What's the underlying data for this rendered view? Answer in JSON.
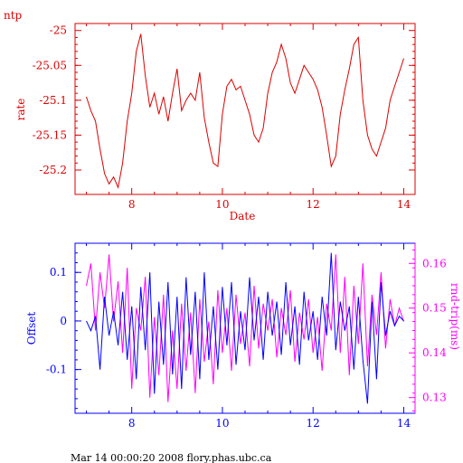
{
  "header": {
    "label": "ntp"
  },
  "footer": {
    "text": "Mar 14 00:00:20 2008 flory.phas.ubc.ca"
  },
  "colors": {
    "top": "#dd0000",
    "offset": "#0000ff",
    "rtt": "#ff00ff",
    "black": "#000000"
  },
  "chart_data": [
    {
      "type": "line",
      "title": "",
      "xlabel": "Date",
      "ylabel": "rate",
      "xlim": [
        6.75,
        14.25
      ],
      "ylim": [
        -25.235,
        -24.99
      ],
      "xticks": [
        8,
        10,
        12,
        14
      ],
      "xtick_labels": [
        "8",
        "10",
        "12",
        "14"
      ],
      "yticks": [
        -25.0,
        -25.05,
        -25.1,
        -25.15,
        -25.2
      ],
      "ytick_labels": [
        "-25",
        "-25.05",
        "-25.1",
        "-25.15",
        "-25.2"
      ],
      "grid": false,
      "series": [
        {
          "x": [
            7.0,
            7.1,
            7.2,
            7.3,
            7.4,
            7.5,
            7.6,
            7.7,
            7.8,
            7.9,
            8.0,
            8.1,
            8.2,
            8.3,
            8.4,
            8.5,
            8.6,
            8.7,
            8.8,
            8.9,
            9.0,
            9.1,
            9.2,
            9.3,
            9.4,
            9.5,
            9.6,
            9.7,
            9.8,
            9.9,
            10.0,
            10.1,
            10.2,
            10.3,
            10.4,
            10.5,
            10.6,
            10.7,
            10.8,
            10.9,
            11.0,
            11.1,
            11.2,
            11.3,
            11.4,
            11.5,
            11.6,
            11.7,
            11.8,
            11.9,
            12.0,
            12.1,
            12.2,
            12.3,
            12.4,
            12.5,
            12.6,
            12.7,
            12.8,
            12.9,
            13.0,
            13.1,
            13.2,
            13.3,
            13.4,
            13.5,
            13.6,
            13.7,
            13.8,
            13.9,
            14.0
          ],
          "values": [
            -25.095,
            -25.115,
            -25.13,
            -25.17,
            -25.205,
            -25.22,
            -25.21,
            -25.225,
            -25.19,
            -25.13,
            -25.09,
            -25.03,
            -25.005,
            -25.065,
            -25.11,
            -25.09,
            -25.12,
            -25.095,
            -25.13,
            -25.09,
            -25.055,
            -25.115,
            -25.1,
            -25.09,
            -25.1,
            -25.06,
            -25.125,
            -25.16,
            -25.19,
            -25.195,
            -25.12,
            -25.08,
            -25.07,
            -25.085,
            -25.08,
            -25.1,
            -25.12,
            -25.15,
            -25.16,
            -25.14,
            -25.09,
            -25.06,
            -25.045,
            -25.02,
            -25.04,
            -25.075,
            -25.09,
            -25.07,
            -25.05,
            -25.06,
            -25.07,
            -25.085,
            -25.11,
            -25.15,
            -25.195,
            -25.18,
            -25.12,
            -25.085,
            -25.055,
            -25.02,
            -25.01,
            -25.1,
            -25.15,
            -25.17,
            -25.18,
            -25.16,
            -25.14,
            -25.1,
            -25.08,
            -25.06,
            -25.04
          ]
        }
      ]
    },
    {
      "type": "line",
      "title": "",
      "xlabel": "",
      "ylabel": "Offset",
      "y2label": "rnd-trip(ms)",
      "xlim": [
        6.75,
        14.25
      ],
      "ylim": [
        -0.19,
        0.16
      ],
      "y2lim": [
        0.1265,
        0.1645
      ],
      "xticks": [
        8,
        10,
        12,
        14
      ],
      "xtick_labels": [
        "8",
        "10",
        "12",
        "14"
      ],
      "yticks": [
        0.1,
        0.0,
        -0.1
      ],
      "ytick_labels": [
        "0.1",
        "0",
        "-0.1"
      ],
      "y2ticks": [
        0.16,
        0.15,
        0.14,
        0.13
      ],
      "y2tick_labels": [
        "0.16",
        "0.15",
        "0.14",
        "0.13"
      ],
      "grid": false,
      "series": [
        {
          "axis": "left",
          "x": [
            7.0,
            7.1,
            7.2,
            7.3,
            7.4,
            7.5,
            7.6,
            7.7,
            7.8,
            7.9,
            8.0,
            8.1,
            8.2,
            8.3,
            8.4,
            8.5,
            8.6,
            8.7,
            8.8,
            8.9,
            9.0,
            9.1,
            9.2,
            9.3,
            9.4,
            9.5,
            9.6,
            9.7,
            9.8,
            9.9,
            10.0,
            10.1,
            10.2,
            10.3,
            10.4,
            10.5,
            10.6,
            10.7,
            10.8,
            10.9,
            11.0,
            11.1,
            11.2,
            11.3,
            11.4,
            11.5,
            11.6,
            11.7,
            11.8,
            11.9,
            12.0,
            12.1,
            12.2,
            12.3,
            12.4,
            12.5,
            12.6,
            12.7,
            12.8,
            12.9,
            13.0,
            13.1,
            13.2,
            13.3,
            13.4,
            13.5,
            13.6,
            13.7,
            13.8,
            13.9,
            14.0
          ],
          "values": [
            0.0,
            -0.02,
            0.01,
            -0.1,
            0.05,
            -0.03,
            0.02,
            -0.05,
            0.06,
            -0.08,
            0.03,
            -0.12,
            0.07,
            -0.06,
            0.1,
            -0.15,
            0.04,
            -0.09,
            0.08,
            -0.11,
            0.05,
            -0.14,
            0.09,
            -0.07,
            0.06,
            -0.12,
            0.1,
            -0.08,
            0.03,
            -0.1,
            0.07,
            -0.05,
            0.08,
            -0.09,
            0.02,
            -0.06,
            0.09,
            -0.04,
            0.05,
            -0.08,
            0.06,
            -0.03,
            0.04,
            -0.07,
            0.08,
            -0.05,
            0.03,
            -0.09,
            0.06,
            -0.04,
            0.02,
            -0.08,
            0.05,
            -0.03,
            0.14,
            -0.06,
            0.04,
            -0.02,
            0.03,
            -0.1,
            0.05,
            -0.08,
            -0.17,
            0.04,
            -0.12,
            0.08,
            -0.03,
            0.02,
            -0.01,
            0.01,
            0.0
          ]
        },
        {
          "axis": "right",
          "x": [
            7.0,
            7.1,
            7.2,
            7.3,
            7.4,
            7.5,
            7.6,
            7.7,
            7.8,
            7.9,
            8.0,
            8.1,
            8.2,
            8.3,
            8.4,
            8.5,
            8.6,
            8.7,
            8.8,
            8.9,
            9.0,
            9.1,
            9.2,
            9.3,
            9.4,
            9.5,
            9.6,
            9.7,
            9.8,
            9.9,
            10.0,
            10.1,
            10.2,
            10.3,
            10.4,
            10.5,
            10.6,
            10.7,
            10.8,
            10.9,
            11.0,
            11.1,
            11.2,
            11.3,
            11.4,
            11.5,
            11.6,
            11.7,
            11.8,
            11.9,
            12.0,
            12.1,
            12.2,
            12.3,
            12.4,
            12.5,
            12.6,
            12.7,
            12.8,
            12.9,
            13.0,
            13.1,
            13.2,
            13.3,
            13.4,
            13.5,
            13.6,
            13.7,
            13.8,
            13.9,
            14.0
          ],
          "values": [
            0.155,
            0.16,
            0.145,
            0.158,
            0.15,
            0.162,
            0.147,
            0.156,
            0.14,
            0.159,
            0.132,
            0.15,
            0.145,
            0.157,
            0.13,
            0.148,
            0.135,
            0.153,
            0.129,
            0.145,
            0.132,
            0.151,
            0.136,
            0.149,
            0.131,
            0.152,
            0.138,
            0.147,
            0.133,
            0.154,
            0.14,
            0.15,
            0.136,
            0.153,
            0.142,
            0.149,
            0.137,
            0.155,
            0.141,
            0.151,
            0.145,
            0.152,
            0.139,
            0.15,
            0.144,
            0.154,
            0.138,
            0.149,
            0.143,
            0.152,
            0.14,
            0.148,
            0.136,
            0.151,
            0.145,
            0.162,
            0.14,
            0.157,
            0.135,
            0.155,
            0.142,
            0.16,
            0.137,
            0.153,
            0.144,
            0.158,
            0.141,
            0.152,
            0.146,
            0.15,
            0.147
          ]
        }
      ]
    }
  ]
}
